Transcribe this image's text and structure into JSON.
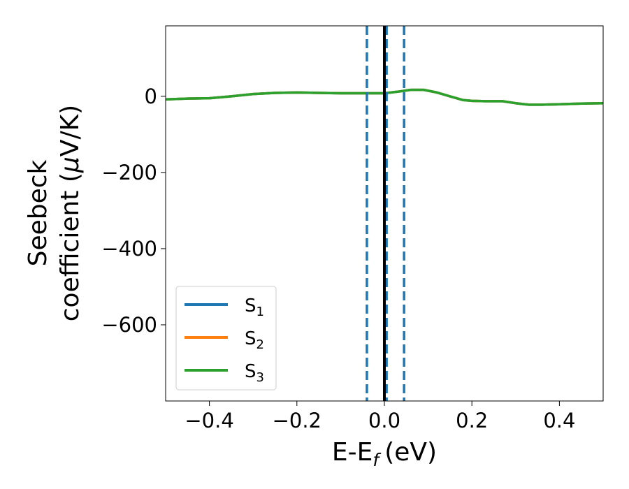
{
  "chart_data": {
    "type": "line",
    "title": "",
    "xlabel": "E-E",
    "xlabel_subscript": "f",
    "xlabel_unit": "(eV)",
    "ylabel_line1": "Seebeck",
    "ylabel_line2": "coefficient  (",
    "ylabel_mu": "μ",
    "ylabel_unit_tail": "V/K)",
    "xlim": [
      -0.5,
      0.5
    ],
    "ylim": [
      -800,
      185
    ],
    "xticks": [
      -0.4,
      -0.2,
      0.0,
      0.2,
      0.4
    ],
    "xtick_labels": [
      "−0.4",
      "−0.2",
      "0.0",
      "0.2",
      "0.4"
    ],
    "yticks": [
      0,
      -200,
      -400,
      -600
    ],
    "ytick_labels": [
      "0",
      "−200",
      "−400",
      "−600"
    ],
    "grid": false,
    "legend_position": "lower-left",
    "series": [
      {
        "name": "S",
        "subscript": "1",
        "color": "#1f77b4",
        "x": [
          -0.5,
          -0.45,
          -0.4,
          -0.35,
          -0.3,
          -0.25,
          -0.2,
          -0.15,
          -0.1,
          -0.05,
          0.0,
          0.03,
          0.06,
          0.09,
          0.12,
          0.15,
          0.18,
          0.2,
          0.23,
          0.27,
          0.3,
          0.33,
          0.36,
          0.4,
          0.45,
          0.5
        ],
        "y": [
          -8,
          -6,
          -5,
          0,
          6,
          9,
          10,
          9,
          8,
          8,
          8,
          12,
          17,
          17,
          10,
          0,
          -10,
          -12,
          -13,
          -13,
          -18,
          -22,
          -22,
          -21,
          -19,
          -18
        ]
      },
      {
        "name": "S",
        "subscript": "2",
        "color": "#ff7f0e",
        "x": [
          -0.5,
          -0.45,
          -0.4,
          -0.35,
          -0.3,
          -0.25,
          -0.2,
          -0.15,
          -0.1,
          -0.05,
          0.0,
          0.03,
          0.06,
          0.09,
          0.12,
          0.15,
          0.18,
          0.2,
          0.23,
          0.27,
          0.3,
          0.33,
          0.36,
          0.4,
          0.45,
          0.5
        ],
        "y": [
          -8,
          -6,
          -5,
          0,
          6,
          9,
          10,
          9,
          8,
          8,
          8,
          12,
          17,
          17,
          10,
          0,
          -10,
          -12,
          -13,
          -13,
          -18,
          -22,
          -22,
          -21,
          -19,
          -18
        ]
      },
      {
        "name": "S",
        "subscript": "3",
        "color": "#2ca02c",
        "x": [
          -0.5,
          -0.45,
          -0.4,
          -0.35,
          -0.3,
          -0.25,
          -0.2,
          -0.15,
          -0.1,
          -0.05,
          0.0,
          0.03,
          0.06,
          0.09,
          0.12,
          0.15,
          0.18,
          0.2,
          0.23,
          0.27,
          0.3,
          0.33,
          0.36,
          0.4,
          0.45,
          0.5
        ],
        "y": [
          -8,
          -6,
          -5,
          0,
          6,
          9,
          10,
          9,
          8,
          8,
          8,
          12,
          17,
          17,
          10,
          0,
          -10,
          -12,
          -13,
          -13,
          -18,
          -22,
          -22,
          -21,
          -19,
          -18
        ]
      }
    ],
    "vertical_lines": [
      {
        "x": -0.04,
        "color": "#1f77b4",
        "style": "dashed"
      },
      {
        "x": 0.005,
        "color": "#1f77b4",
        "style": "dashed"
      },
      {
        "x": 0.045,
        "color": "#1f77b4",
        "style": "dashed"
      },
      {
        "x": 0.0,
        "color": "#000000",
        "style": "solid"
      }
    ]
  }
}
